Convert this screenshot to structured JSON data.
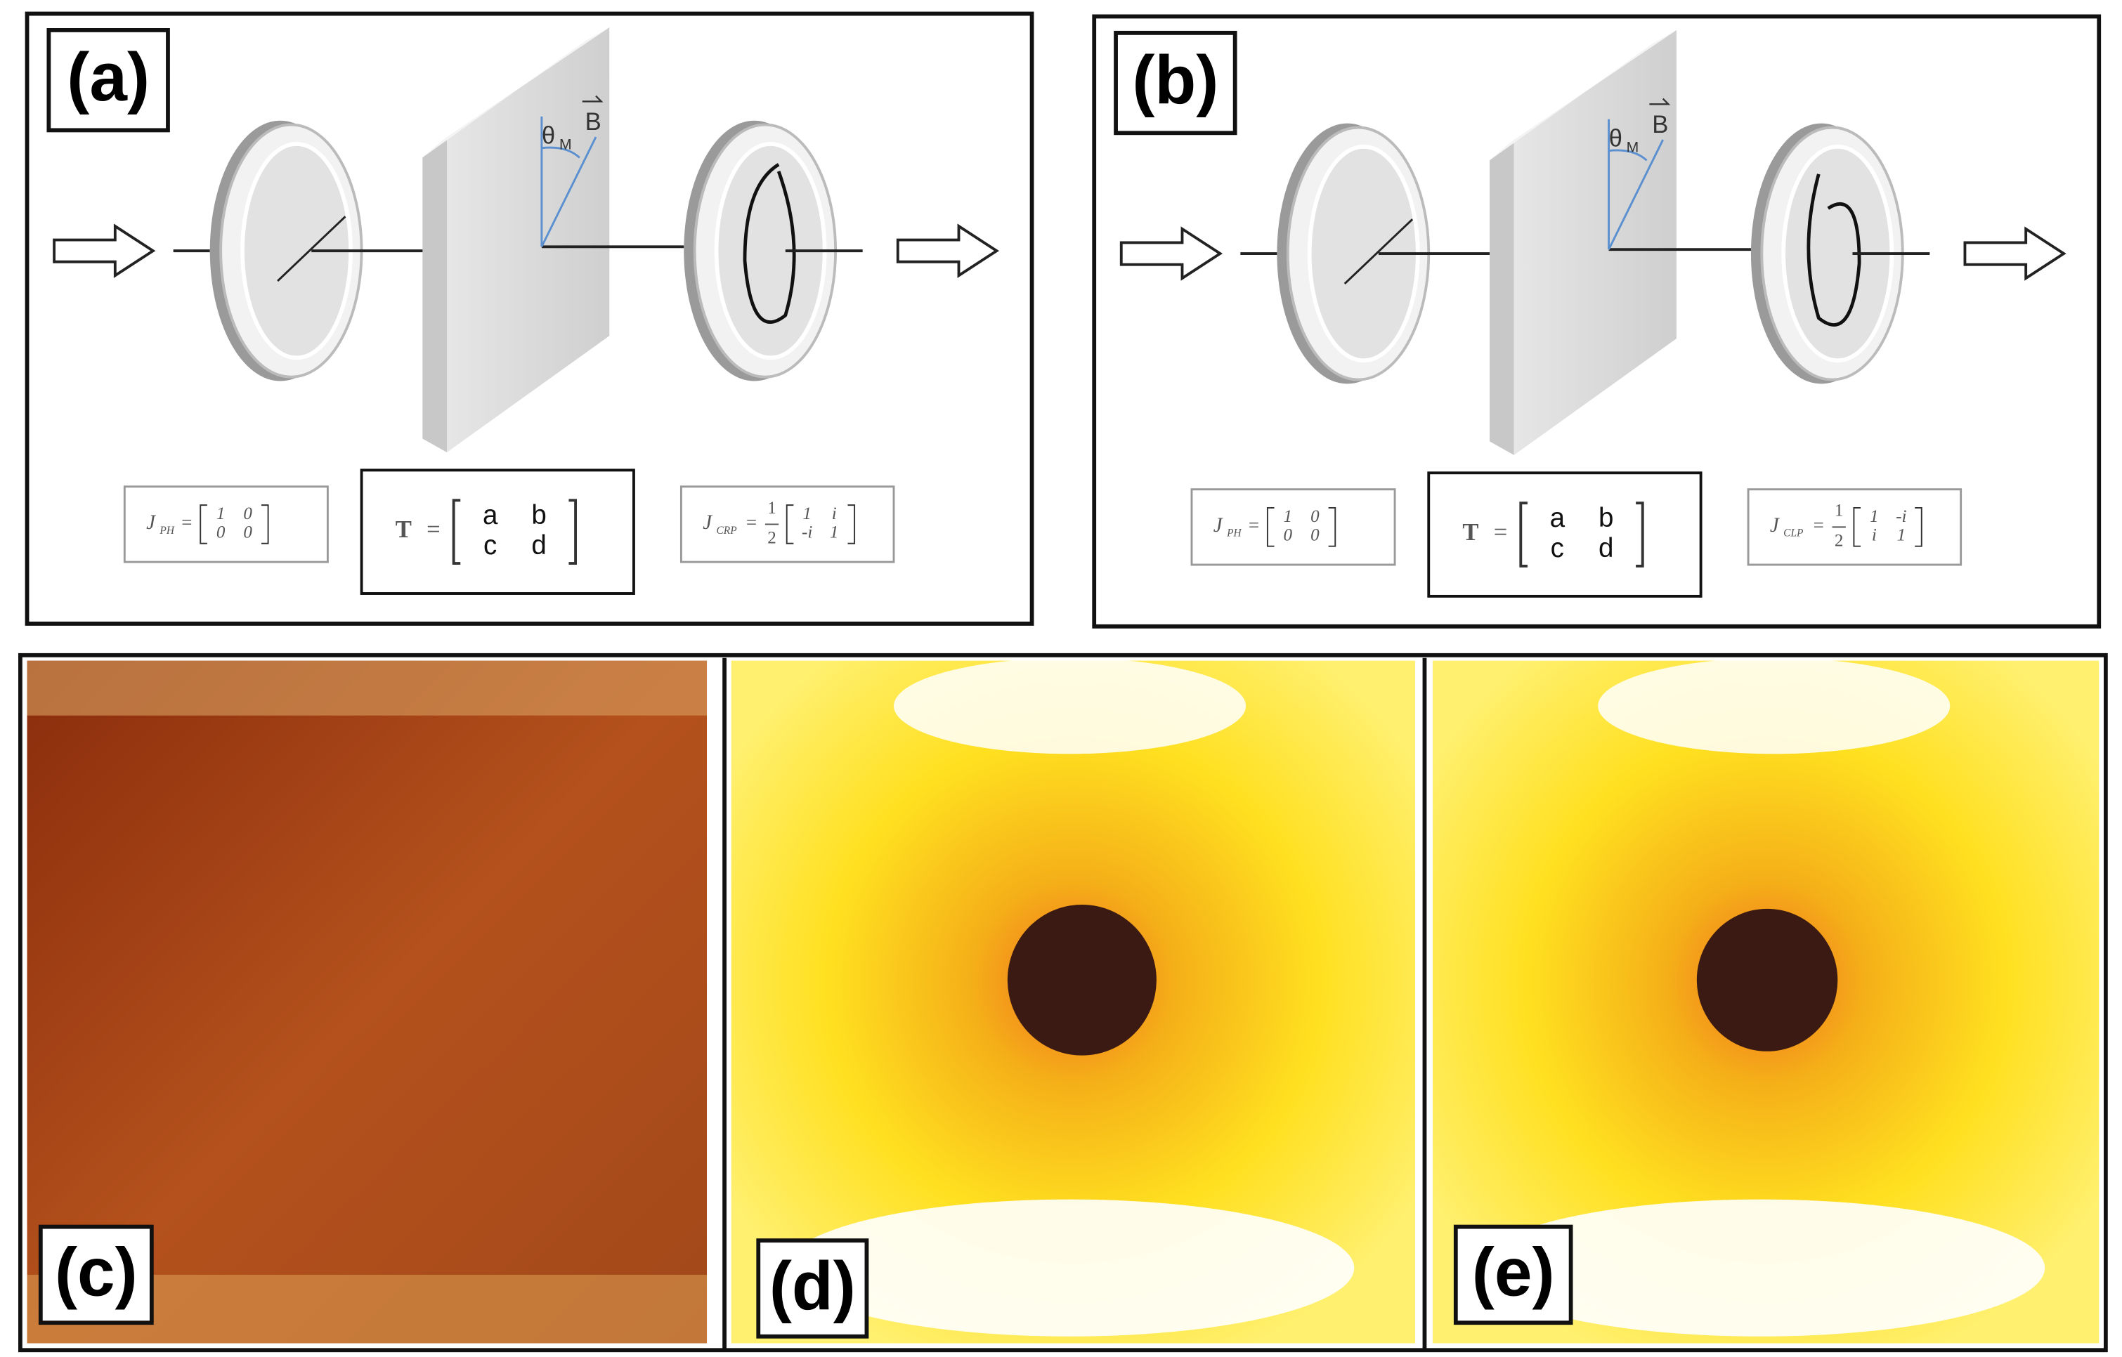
{
  "panels": [
    {
      "label": "(a)",
      "angle_label": "θ",
      "angle_sub": "M",
      "field_label": "B",
      "matrices": [
        {
          "name": "J",
          "sub": "PH",
          "equals": "=",
          "rows": [
            [
              "1",
              "0"
            ],
            [
              "0",
              "0"
            ]
          ]
        },
        {
          "name": "T",
          "equals": "=",
          "rows": [
            [
              "a",
              "b"
            ],
            [
              "c",
              "d"
            ]
          ]
        },
        {
          "name": "J",
          "sub": "CRP",
          "equals": "=",
          "factor": {
            "num": "1",
            "den": "2"
          },
          "rows": [
            [
              "1",
              "i"
            ],
            [
              "-i",
              "1"
            ]
          ]
        }
      ]
    },
    {
      "label": "(b)",
      "angle_label": "θ",
      "angle_sub": "M",
      "field_label": "B",
      "matrices": [
        {
          "name": "J",
          "sub": "PH",
          "equals": "=",
          "rows": [
            [
              "1",
              "0"
            ],
            [
              "0",
              "0"
            ]
          ]
        },
        {
          "name": "T",
          "equals": "=",
          "rows": [
            [
              "a",
              "b"
            ],
            [
              "c",
              "d"
            ]
          ]
        },
        {
          "name": "J",
          "sub": "CLP",
          "equals": "=",
          "factor": {
            "num": "1",
            "den": "2"
          },
          "rows": [
            [
              "1",
              "-i"
            ],
            [
              "i",
              "1"
            ]
          ]
        }
      ]
    }
  ],
  "photos": [
    {
      "label": "(c)"
    },
    {
      "label": "(d)"
    },
    {
      "label": "(e)"
    }
  ]
}
